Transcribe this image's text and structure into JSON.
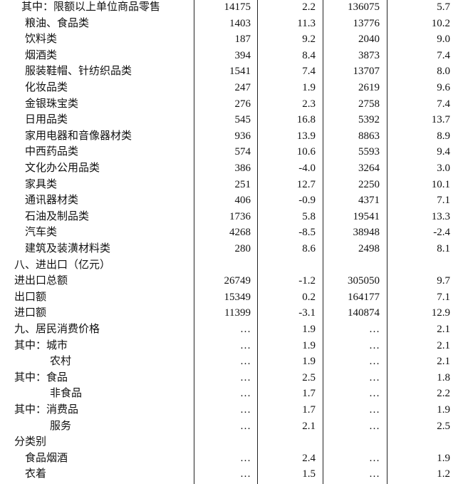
{
  "table": {
    "rows": [
      [
        "其中：限额以上单位商品零售",
        "14175",
        "2.2",
        "136075",
        "5.7"
      ],
      [
        "粮油、食品类",
        "1403",
        "11.3",
        "13776",
        "10.2"
      ],
      [
        "饮料类",
        "187",
        "9.2",
        "2040",
        "9.0"
      ],
      [
        "烟酒类",
        "394",
        "8.4",
        "3873",
        "7.4"
      ],
      [
        "服装鞋帽、针纺织品类",
        "1541",
        "7.4",
        "13707",
        "8.0"
      ],
      [
        "化妆品类",
        "247",
        "1.9",
        "2619",
        "9.6"
      ],
      [
        "金银珠宝类",
        "276",
        "2.3",
        "2758",
        "7.4"
      ],
      [
        "日用品类",
        "545",
        "16.8",
        "5392",
        "13.7"
      ],
      [
        "家用电器和音像器材类",
        "936",
        "13.9",
        "8863",
        "8.9"
      ],
      [
        "中西药品类",
        "574",
        "10.6",
        "5593",
        "9.4"
      ],
      [
        "文化办公用品类",
        "386",
        "-4.0",
        "3264",
        "3.0"
      ],
      [
        "家具类",
        "251",
        "12.7",
        "2250",
        "10.1"
      ],
      [
        "通讯器材类",
        "406",
        "-0.9",
        "4371",
        "7.1"
      ],
      [
        "石油及制品类",
        "1736",
        "5.8",
        "19541",
        "13.3"
      ],
      [
        "汽车类",
        "4268",
        "-8.5",
        "38948",
        "-2.4"
      ],
      [
        "建筑及装潢材料类",
        "280",
        "8.6",
        "2498",
        "8.1"
      ],
      [
        "八、进出口（亿元）"
      ],
      [
        "进出口总额",
        "26749",
        "-1.2",
        "305050",
        "9.7"
      ],
      [
        "出口额",
        "15349",
        "0.2",
        "164177",
        "7.1"
      ],
      [
        "进口额",
        "11399",
        "-3.1",
        "140874",
        "12.9"
      ],
      [
        "九、居民消费价格",
        "…",
        "1.9",
        "…",
        "2.1"
      ],
      [
        "其中：城市",
        "…",
        "1.9",
        "…",
        "2.1"
      ],
      [
        "农村",
        "…",
        "1.9",
        "…",
        "2.1"
      ],
      [
        "其中：食品",
        "…",
        "2.5",
        "…",
        "1.8"
      ],
      [
        "非食品",
        "…",
        "1.7",
        "…",
        "2.2"
      ],
      [
        "其中：消费品",
        "…",
        "1.7",
        "…",
        "1.9"
      ],
      [
        "服务",
        "…",
        "2.1",
        "…",
        "2.5"
      ],
      [
        "分类别"
      ],
      [
        "食品烟酒",
        "…",
        "2.4",
        "…",
        "1.9"
      ],
      [
        "衣着",
        "…",
        "1.5",
        "…",
        "1.2"
      ]
    ]
  }
}
